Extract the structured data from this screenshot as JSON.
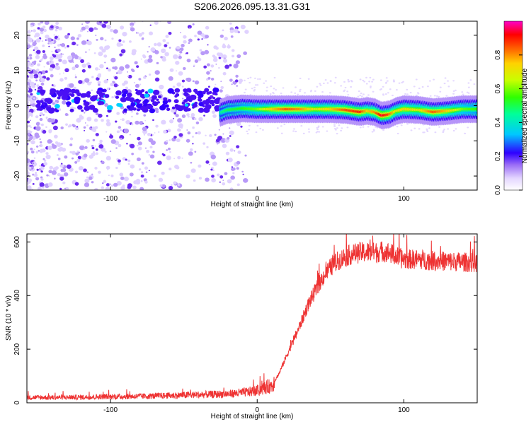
{
  "title": "S206.2026.095.13.31.G31",
  "chart_data": [
    {
      "type": "heatmap",
      "name": "spectrogram",
      "xlabel": "Height of straight line (km)",
      "ylabel": "Frequency (Hz)",
      "xlim": [
        -157,
        150
      ],
      "ylim": [
        -24,
        24
      ],
      "xticks": [
        -100,
        0,
        100
      ],
      "yticks": [
        -20,
        -10,
        0,
        10,
        20
      ],
      "colorbar": {
        "label": "Normalized spectral amplitude",
        "ticks": [
          0.0,
          0.2,
          0.4,
          0.6,
          0.8
        ],
        "range": [
          0,
          1
        ]
      },
      "ridge": {
        "x": [
          -25,
          -20,
          -10,
          0,
          10,
          20,
          30,
          40,
          50,
          60,
          70,
          75,
          80,
          85,
          90,
          95,
          100,
          110,
          120,
          130,
          140,
          150
        ],
        "freq": [
          -2,
          -1.2,
          -0.8,
          -1,
          -1,
          -1,
          -1,
          -1,
          -1,
          -1.2,
          -1.8,
          -1.5,
          -1.8,
          -2.8,
          -2.5,
          -1.5,
          -1,
          -1.2,
          -1.8,
          -1.5,
          -1,
          -1
        ],
        "amplitude": [
          0.45,
          0.5,
          0.55,
          0.6,
          0.75,
          0.85,
          0.8,
          0.7,
          0.75,
          0.85,
          0.9,
          0.75,
          0.8,
          0.95,
          0.85,
          0.7,
          0.75,
          0.7,
          0.85,
          0.75,
          0.6,
          0.55
        ]
      }
    },
    {
      "type": "line",
      "name": "snr",
      "xlabel": "Height of straight line (km)",
      "ylabel": "SNR (10 * v/v)",
      "xlim": [
        -157,
        150
      ],
      "ylim": [
        0,
        630
      ],
      "xticks": [
        -100,
        0,
        100
      ],
      "yticks": [
        0,
        200,
        400,
        600
      ],
      "color": "#ee3333",
      "series": [
        {
          "name": "SNR",
          "x": [
            -157,
            -140,
            -120,
            -100,
            -80,
            -60,
            -40,
            -20,
            -10,
            0,
            10,
            15,
            20,
            25,
            30,
            35,
            40,
            45,
            50,
            55,
            60,
            65,
            70,
            75,
            80,
            85,
            90,
            95,
            100,
            110,
            120,
            130,
            140,
            150
          ],
          "values": [
            20,
            20,
            21,
            23,
            24,
            27,
            30,
            33,
            38,
            45,
            65,
            110,
            175,
            235,
            300,
            370,
            420,
            470,
            505,
            530,
            545,
            555,
            560,
            562,
            560,
            565,
            560,
            545,
            535,
            535,
            530,
            528,
            525,
            522
          ]
        }
      ]
    }
  ]
}
